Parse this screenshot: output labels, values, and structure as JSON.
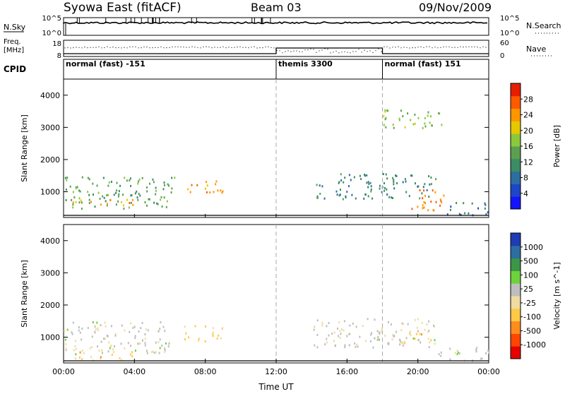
{
  "header": {
    "title": "Syowa East (fitACF)",
    "beam": "Beam 03",
    "date": "09/Nov/2009"
  },
  "status_panels": {
    "nsky_label": "N.Sky",
    "nsky_ticks": [
      "10^5",
      "10^0"
    ],
    "nsearch_label": "N.Search",
    "nsearch_ticks": [
      "10^5",
      "10^0"
    ],
    "freq_label_line1": "Freq.",
    "freq_label_line2": "[MHz]",
    "freq_ticks": [
      "18",
      "8"
    ],
    "nave_label": "Nave",
    "nave_ticks": [
      "60",
      "0"
    ],
    "cpid_label": "CPID",
    "cpid_segments": [
      {
        "label": "normal (fast) -151",
        "start_h": 0,
        "end_h": 12
      },
      {
        "label": "themis 3300",
        "start_h": 12,
        "end_h": 18
      },
      {
        "label": "normal (fast) 151",
        "start_h": 18,
        "end_h": 24
      }
    ]
  },
  "colors": {
    "power_scale": [
      "#1414ff",
      "#1e46c8",
      "#2d6ea0",
      "#3c8c64",
      "#5aa050",
      "#8cc83c",
      "#e6c800",
      "#ff9600",
      "#ff5a00",
      "#e61e00"
    ],
    "velocity_scale": [
      "#e60000",
      "#ff4600",
      "#ff8c1e",
      "#ffc846",
      "#f0dca0",
      "#bebebe",
      "#6ed23c",
      "#3c9646",
      "#2d6ea0",
      "#1e3cb4"
    ]
  },
  "chart_data": [
    {
      "type": "heatmap",
      "ylabel": "Slant Range [km]",
      "yticks": [
        "4000",
        "3000",
        "2000",
        "1000"
      ],
      "ylim": [
        200,
        4500
      ],
      "colorbar_label": "Power [dB]",
      "colorbar_ticks": [
        "28",
        "24",
        "20",
        "16",
        "12",
        "8",
        "4"
      ],
      "colorbar_range": [
        0,
        30
      ],
      "xlim": [
        0,
        24
      ],
      "echo_regions": [
        {
          "t0": 0.0,
          "t1": 6.3,
          "r0": 500,
          "r1": 1500,
          "value": 13
        },
        {
          "t0": 0.5,
          "t1": 4.5,
          "r0": 600,
          "r1": 800,
          "value": 22
        },
        {
          "t0": 6.8,
          "t1": 9.2,
          "r0": 1000,
          "r1": 1400,
          "value": 22
        },
        {
          "t0": 14.2,
          "t1": 21.0,
          "r0": 800,
          "r1": 1600,
          "value": 10
        },
        {
          "t0": 19.5,
          "t1": 21.5,
          "r0": 400,
          "r1": 1100,
          "value": 24
        },
        {
          "t0": 21.5,
          "t1": 24.0,
          "r0": 300,
          "r1": 700,
          "value": 8
        },
        {
          "t0": 18.0,
          "t1": 21.5,
          "r0": 3000,
          "r1": 3600,
          "value": 16
        }
      ]
    },
    {
      "type": "heatmap",
      "ylabel": "Slant Range [km]",
      "yticks": [
        "4000",
        "3000",
        "2000",
        "1000"
      ],
      "ylim": [
        200,
        4500
      ],
      "colorbar_label": "Velocity [m s^-1]",
      "colorbar_ticks": [
        "1000",
        "500",
        "100",
        "25",
        "-25",
        "-100",
        "-500",
        "-1000"
      ],
      "colorbar_range": [
        -1200,
        1200
      ],
      "xlabel": "Time UT",
      "xticks": [
        "00:00",
        "04:00",
        "08:00",
        "12:00",
        "16:00",
        "20:00",
        "00:00"
      ],
      "xlim": [
        0,
        24
      ],
      "echo_regions": [
        {
          "t0": 0.0,
          "t1": 6.0,
          "r0": 500,
          "r1": 1500,
          "value": 80
        },
        {
          "t0": 0.5,
          "t1": 4.0,
          "r0": 300,
          "r1": 700,
          "value": -300
        },
        {
          "t0": 6.8,
          "t1": 9.0,
          "r0": 900,
          "r1": 1400,
          "value": -300
        },
        {
          "t0": 14.0,
          "t1": 21.0,
          "r0": 700,
          "r1": 1600,
          "value": 50
        },
        {
          "t0": 19.0,
          "t1": 21.0,
          "r0": 800,
          "r1": 1200,
          "value": -300
        },
        {
          "t0": 21.0,
          "t1": 24.0,
          "r0": 300,
          "r1": 700,
          "value": 120
        }
      ]
    }
  ]
}
